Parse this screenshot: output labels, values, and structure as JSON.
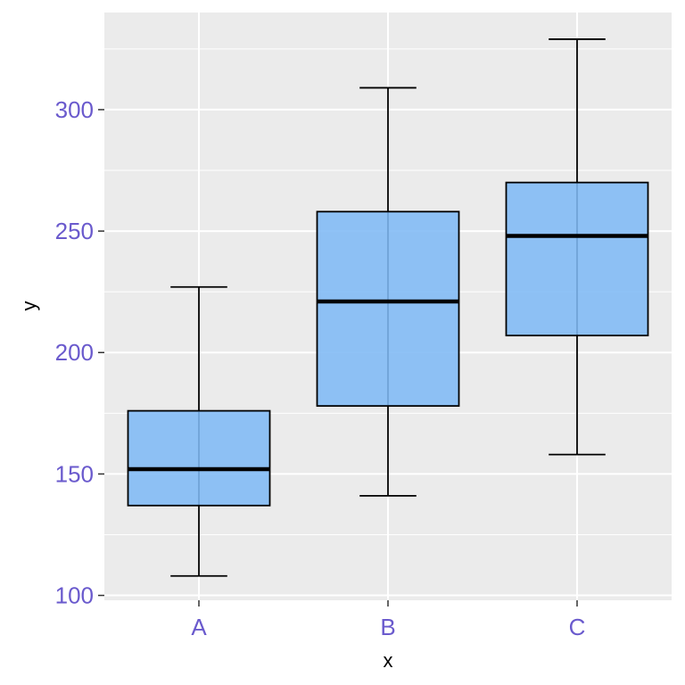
{
  "chart_data": {
    "type": "boxplot",
    "xlabel": "x",
    "ylabel": "y",
    "categories": [
      "A",
      "B",
      "C"
    ],
    "ylim": [
      98,
      340
    ],
    "y_ticks": [
      100,
      150,
      200,
      250,
      300
    ],
    "y_tick_labels": [
      "100",
      "150",
      "200",
      "250",
      "300"
    ],
    "grid": true,
    "boxes": [
      {
        "category": "A",
        "whisker_low": 108,
        "q1": 137,
        "median": 152,
        "q3": 176,
        "whisker_high": 227
      },
      {
        "category": "B",
        "whisker_low": 141,
        "q1": 178,
        "median": 221,
        "q3": 258,
        "whisker_high": 309
      },
      {
        "category": "C",
        "whisker_low": 158,
        "q1": 207,
        "median": 248,
        "q3": 270,
        "whisker_high": 329
      }
    ],
    "colors": {
      "box_fill": "#80b9f5",
      "box_outline": "#000000",
      "panel_background": "#ebebeb",
      "grid": "#ffffff",
      "tick_label": "#6a5acd"
    }
  }
}
